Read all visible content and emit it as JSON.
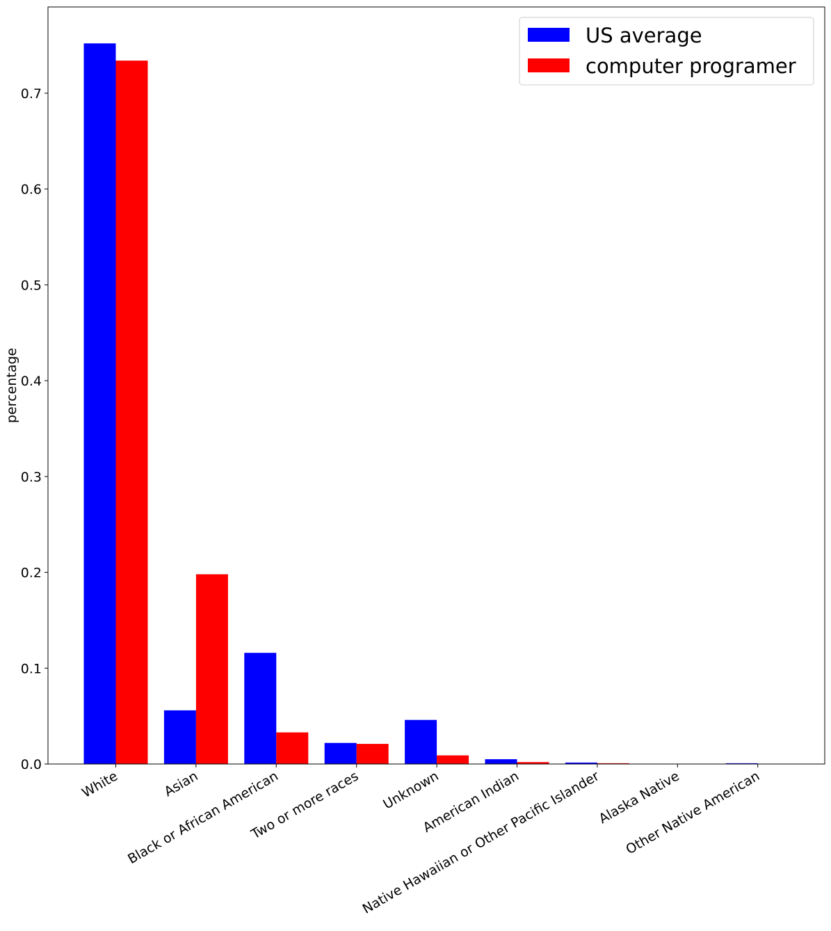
{
  "chart_data": {
    "type": "bar",
    "title": "",
    "xlabel": "",
    "ylabel": "percentage",
    "ylim": [
      0.0,
      0.79
    ],
    "yticks": [
      "0.0",
      "0.1",
      "0.2",
      "0.3",
      "0.4",
      "0.5",
      "0.6",
      "0.7"
    ],
    "grid": false,
    "legend_position": "top-right",
    "categories": [
      "White",
      "Asian",
      "Black or African American",
      "Two or more races",
      "Unknown",
      "American Indian",
      "Native Hawaiian or Other Pacific Islander",
      "Alaska Native",
      "Other Native American"
    ],
    "series": [
      {
        "name": "US average",
        "color": "#0000ff",
        "values": [
          0.752,
          0.056,
          0.116,
          0.022,
          0.046,
          0.005,
          0.0015,
          0.0002,
          0.0008
        ]
      },
      {
        "name": "computer programer",
        "color": "#ff0000",
        "values": [
          0.734,
          0.198,
          0.033,
          0.021,
          0.009,
          0.002,
          0.0008,
          0.0,
          0.0001
        ]
      }
    ]
  }
}
